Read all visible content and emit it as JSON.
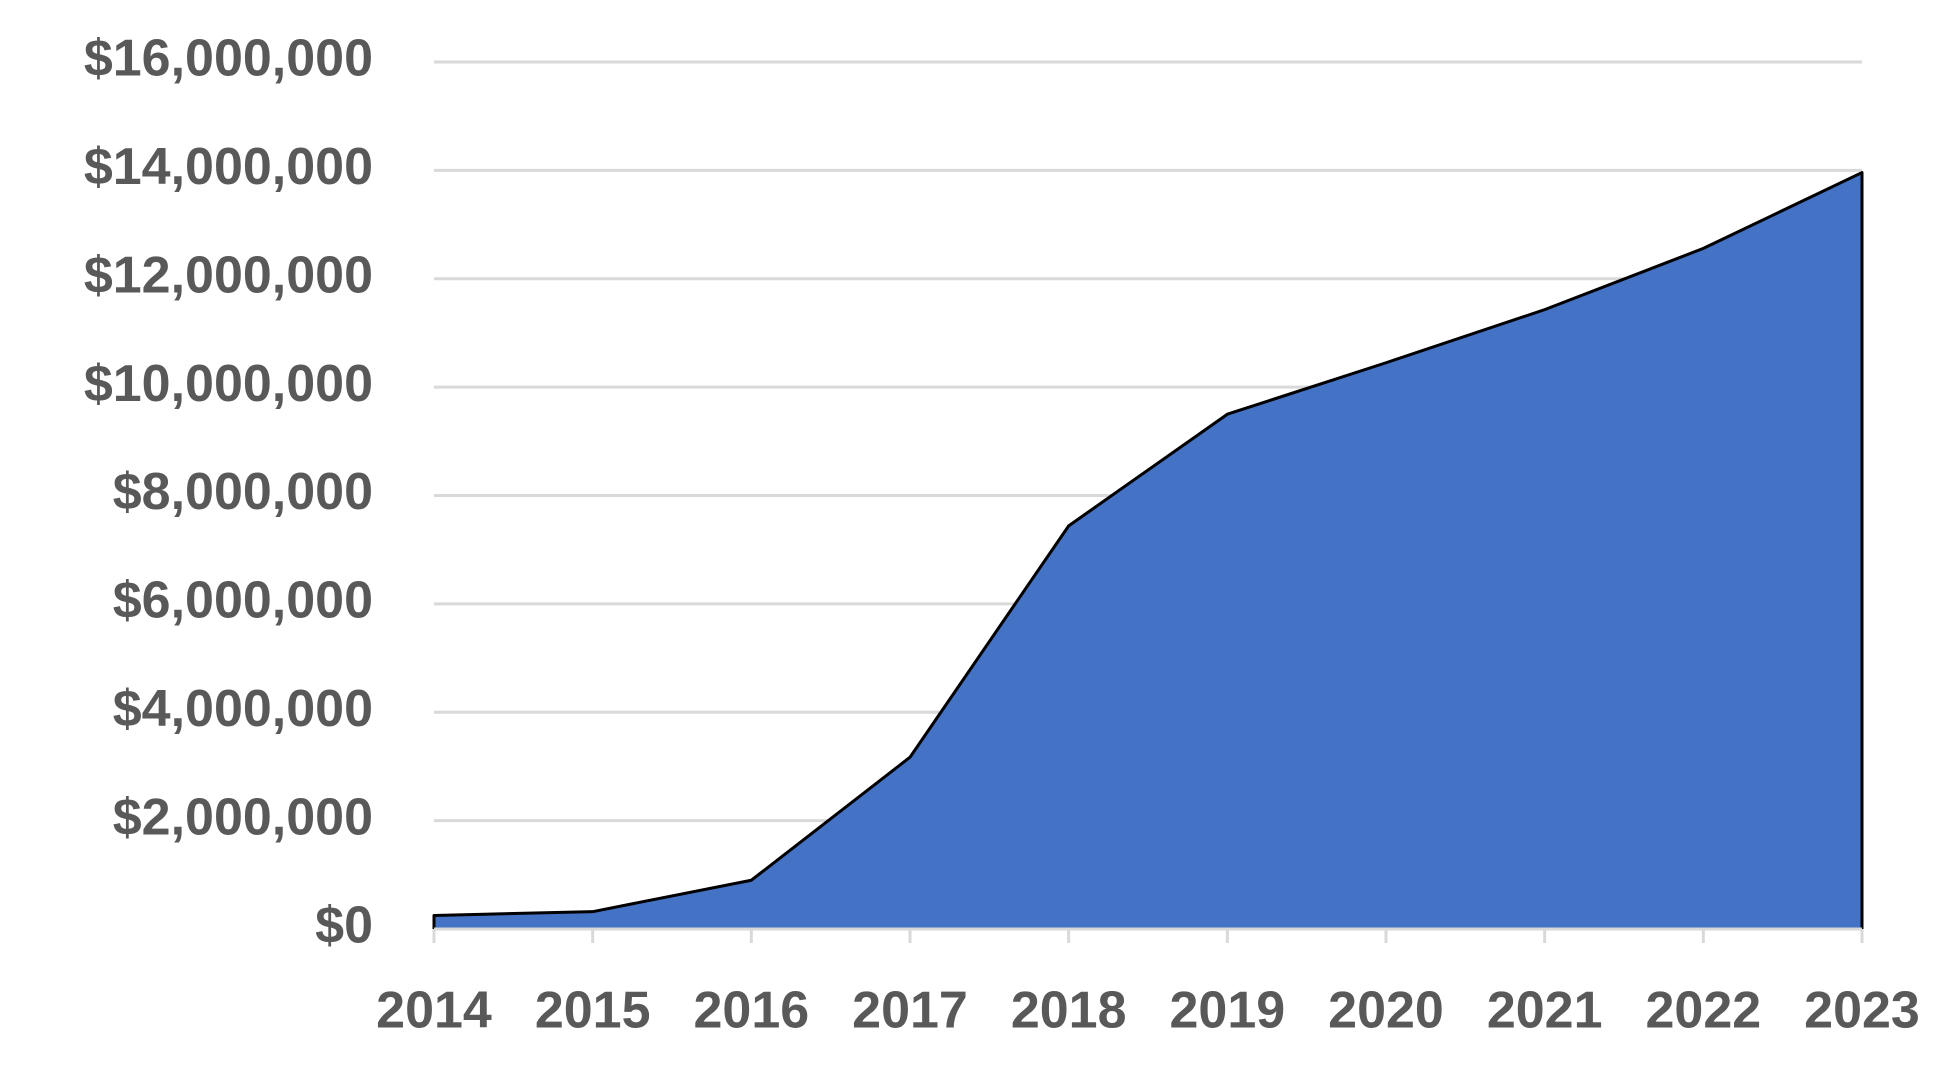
{
  "chart_data": {
    "type": "area",
    "categories": [
      "2014",
      "2015",
      "2016",
      "2017",
      "2018",
      "2019",
      "2020",
      "2021",
      "2022",
      "2023"
    ],
    "series": [
      {
        "color": "#4472c4",
        "values": [
          250000,
          320000,
          900000,
          3170000,
          7440000,
          9500000,
          10450000,
          11430000,
          12560000,
          13960000
        ]
      }
    ],
    "ylim": [
      0,
      16000000
    ],
    "yticks": [
      {
        "value": 0,
        "label": "$0"
      },
      {
        "value": 2000000,
        "label": "$2,000,000"
      },
      {
        "value": 4000000,
        "label": "$4,000,000"
      },
      {
        "value": 6000000,
        "label": "$6,000,000"
      },
      {
        "value": 8000000,
        "label": "$8,000,000"
      },
      {
        "value": 10000000,
        "label": "$10,000,000"
      },
      {
        "value": 12000000,
        "label": "$12,000,000"
      },
      {
        "value": 14000000,
        "label": "$14,000,000"
      },
      {
        "value": 16000000,
        "label": "$16,000,000"
      }
    ],
    "grid": true
  }
}
